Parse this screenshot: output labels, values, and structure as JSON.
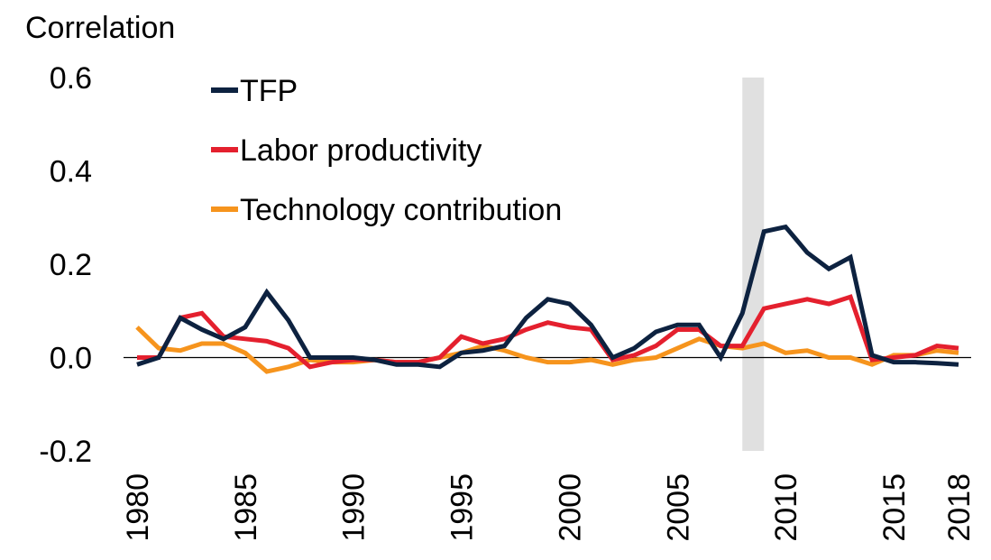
{
  "chart_data": {
    "type": "line",
    "y_label": "Correlation",
    "x": [
      1980,
      1981,
      1982,
      1983,
      1984,
      1985,
      1986,
      1987,
      1988,
      1989,
      1990,
      1991,
      1992,
      1993,
      1994,
      1995,
      1996,
      1997,
      1998,
      1999,
      2000,
      2001,
      2002,
      2003,
      2004,
      2005,
      2006,
      2007,
      2008,
      2009,
      2010,
      2011,
      2012,
      2013,
      2014,
      2015,
      2016,
      2017,
      2018
    ],
    "series": [
      {
        "name": "TFP",
        "color": "#0d2240",
        "values": [
          -0.015,
          0.0,
          0.085,
          0.06,
          0.04,
          0.065,
          0.14,
          0.08,
          0.0,
          0.0,
          0.0,
          -0.005,
          -0.015,
          -0.015,
          -0.02,
          0.01,
          0.015,
          0.025,
          0.085,
          0.125,
          0.115,
          0.07,
          0.0,
          0.02,
          0.055,
          0.07,
          0.07,
          0.0,
          0.095,
          0.27,
          0.28,
          0.225,
          0.19,
          0.215,
          0.005,
          -0.01,
          -0.01,
          -0.012,
          -0.015
        ]
      },
      {
        "name": "Labor productivity",
        "color": "#e4202e",
        "values": [
          0.0,
          0.0,
          0.085,
          0.095,
          0.045,
          0.04,
          0.035,
          0.02,
          -0.02,
          -0.01,
          -0.005,
          -0.005,
          -0.01,
          -0.01,
          0.0,
          0.045,
          0.03,
          0.04,
          0.06,
          0.075,
          0.065,
          0.06,
          -0.005,
          0.005,
          0.025,
          0.06,
          0.06,
          0.025,
          0.025,
          0.105,
          0.115,
          0.125,
          0.115,
          0.13,
          -0.005,
          0.0,
          0.005,
          0.025,
          0.02
        ]
      },
      {
        "name": "Technology contribution",
        "color": "#f6941d",
        "values": [
          0.065,
          0.02,
          0.015,
          0.03,
          0.03,
          0.01,
          -0.03,
          -0.02,
          -0.005,
          -0.01,
          -0.01,
          -0.005,
          -0.01,
          -0.01,
          0.0,
          0.01,
          0.025,
          0.015,
          0.0,
          -0.01,
          -0.01,
          -0.005,
          -0.015,
          -0.005,
          0.0,
          0.02,
          0.04,
          0.025,
          0.02,
          0.03,
          0.01,
          0.015,
          0.0,
          0.0,
          -0.015,
          0.005,
          0.005,
          0.015,
          0.01
        ]
      }
    ],
    "shade": [
      2008,
      2009
    ],
    "shade_color": "#e0e0e0",
    "xlim": [
      1980,
      2018
    ],
    "xticks": [
      1980,
      1985,
      1990,
      1995,
      2000,
      2005,
      2010,
      2015,
      2018
    ],
    "ylim": [
      -0.2,
      0.6
    ],
    "yticks": [
      0.6,
      0.4,
      0.2,
      {
        "value": 0,
        "label": "0.0"
      },
      -0.2
    ],
    "grid": false,
    "legend": "upper left"
  }
}
